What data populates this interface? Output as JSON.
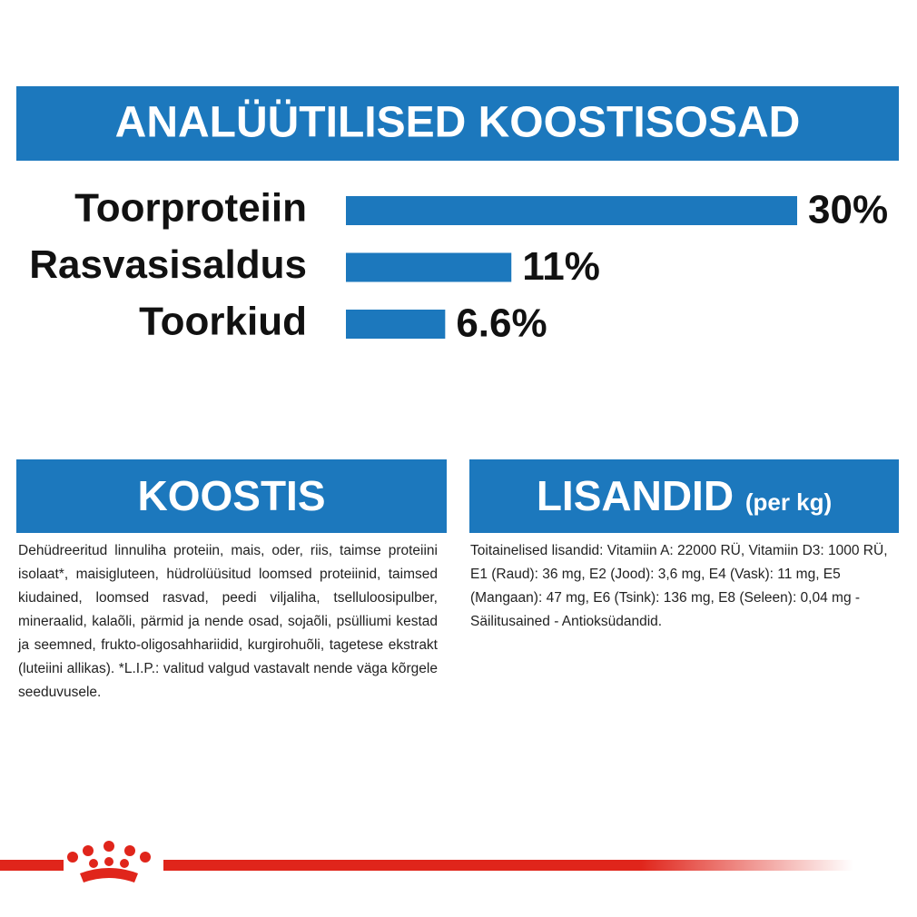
{
  "chart_data": {
    "type": "bar",
    "title": "ANALÜÜTILISED KOOSTISOSAD",
    "categories": [
      "Toorproteiin",
      "Rasvasisaldus",
      "Toorkiud"
    ],
    "values": [
      30,
      11,
      6.6
    ],
    "value_labels": [
      "30%",
      "11%",
      "6.6%"
    ],
    "color": "#1c78bd"
  },
  "sections": [
    {
      "title": "KOOSTIS",
      "text": "Dehüdreeritud linnuliha proteiin, mais, oder, riis, taimse proteiini isolaat*, maisigluteen, hüdrolüüsitud loomsed proteiinid, taimsed kiudained, loomsed rasvad, peedi viljaliha, tselluloosipulber, mineraalid, kalaõli, pärmid ja nende osad, sojaõli, psülliumi kestad ja seemned, frukto-oligosahhariidid, kurgirohuõli, tagetese ekstrakt (luteiini allikas). *L.I.P.: valitud valgud vastavalt nende väga kõrgele seeduvusele."
    },
    {
      "title": "LISANDID",
      "subtitle": "(per kg)",
      "text": "Toitainelised lisandid: Vitamiin A: 22000 RÜ, Vitamiin D3: 1000 RÜ, E1 (Raud): 36 mg, E2 (Jood): 3,6 mg, E4 (Vask): 11 mg, E5 (Mangaan): 47 mg, E6 (Tsink): 136 mg, E8 (Seleen): 0,04 mg - Säilitusained - Antioksüdandid."
    }
  ]
}
